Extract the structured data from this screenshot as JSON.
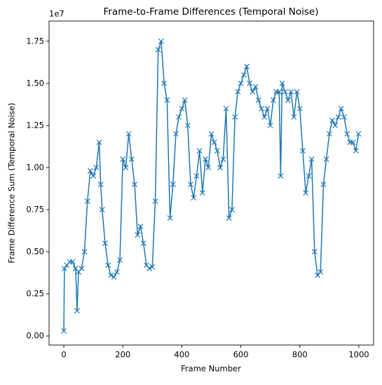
{
  "chart_data": {
    "type": "line",
    "title": "Frame-to-Frame Differences (Temporal Noise)",
    "x_label": "Frame Number",
    "y_label": "Frame Difference Sum (Temporal Noise)",
    "y_offset_label": "1e7",
    "xlim": [
      -50,
      1050
    ],
    "ylim": [
      -0.054,
      1.87
    ],
    "xticks": [
      0,
      200,
      400,
      600,
      800,
      1000
    ],
    "yticks": [
      {
        "value": 0,
        "label": "0.00"
      },
      0.25,
      {
        "value": 0.5,
        "label": "0.50"
      },
      0.75,
      {
        "value": 1,
        "label": "1.00"
      },
      1.25,
      {
        "value": 1.5,
        "label": "1.50"
      },
      1.75
    ],
    "grid": false,
    "series": [
      {
        "color": "#1f77b4",
        "marker": "x",
        "x": [
          0,
          2,
          10,
          20,
          30,
          40,
          45,
          50,
          60,
          70,
          80,
          90,
          100,
          110,
          120,
          125,
          130,
          140,
          150,
          160,
          170,
          180,
          190,
          200,
          210,
          220,
          230,
          240,
          250,
          260,
          270,
          280,
          290,
          300,
          310,
          320,
          330,
          340,
          350,
          360,
          370,
          380,
          390,
          400,
          410,
          420,
          430,
          440,
          450,
          460,
          470,
          480,
          490,
          500,
          510,
          520,
          530,
          540,
          550,
          560,
          570,
          580,
          590,
          600,
          610,
          620,
          630,
          640,
          650,
          660,
          670,
          680,
          690,
          700,
          710,
          720,
          730,
          735,
          740,
          750,
          760,
          770,
          780,
          790,
          800,
          810,
          820,
          830,
          840,
          850,
          860,
          870,
          880,
          890,
          900,
          910,
          920,
          930,
          940,
          950,
          960,
          970,
          980,
          990,
          999
        ],
        "values": [
          0.03,
          0.4,
          0.42,
          0.44,
          0.44,
          0.4,
          0.15,
          0.38,
          0.4,
          0.5,
          0.8,
          0.98,
          0.95,
          1.0,
          1.15,
          0.9,
          0.75,
          0.55,
          0.42,
          0.36,
          0.35,
          0.38,
          0.45,
          1.05,
          1.0,
          1.2,
          1.05,
          0.9,
          0.6,
          0.65,
          0.55,
          0.42,
          0.4,
          0.41,
          0.8,
          1.7,
          1.75,
          1.5,
          1.4,
          0.7,
          0.9,
          1.2,
          1.3,
          1.35,
          1.4,
          1.25,
          0.9,
          0.82,
          0.95,
          1.1,
          0.85,
          1.05,
          1.0,
          1.2,
          1.15,
          1.1,
          1.0,
          1.05,
          1.35,
          0.7,
          0.75,
          1.3,
          1.45,
          1.5,
          1.55,
          1.6,
          1.5,
          1.45,
          1.48,
          1.4,
          1.35,
          1.3,
          1.35,
          1.25,
          1.4,
          1.45,
          1.45,
          0.95,
          1.5,
          1.45,
          1.4,
          1.45,
          1.3,
          1.45,
          1.35,
          1.1,
          0.85,
          0.95,
          1.05,
          0.5,
          0.36,
          0.38,
          0.9,
          1.05,
          1.2,
          1.28,
          1.25,
          1.3,
          1.35,
          1.3,
          1.2,
          1.15,
          1.15,
          1.1,
          1.2
        ]
      }
    ]
  }
}
